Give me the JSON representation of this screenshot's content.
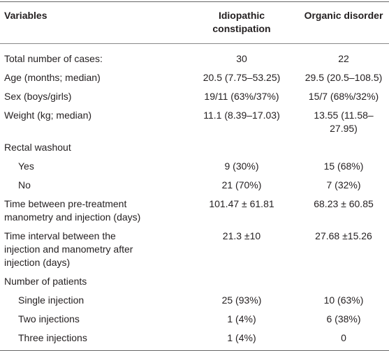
{
  "table": {
    "header": [
      "Variables",
      "Idiopathic\nconstipation",
      "Organic disorder"
    ],
    "rows": [
      [
        "Total number of cases:",
        "30",
        "22"
      ],
      [
        "Age (months; median)",
        "20.5 (7.75–53.25)",
        "29.5 (20.5–108.5)"
      ],
      [
        "Sex (boys/girls)",
        "19/11 (63%/37%)",
        "15/7 (68%/32%)"
      ],
      [
        "Weight (kg; median)",
        "11.1 (8.39–17.03)",
        "13.55 (11.58–27.95)"
      ],
      {
        "label": "Rectal washout",
        "rows": [
          [
            "Yes",
            "9 (30%)",
            "15 (68%)"
          ],
          [
            "No",
            "21 (70%)",
            "7 (32%)"
          ]
        ]
      },
      [
        "Time between pre-treatment\nmanometry and injection (days)",
        "101.47 ± 61.81",
        "68.23 ± 60.85"
      ],
      [
        "Time interval between the\ninjection and manometry after\ninjection (days)",
        "21.3 ±10",
        "27.68 ±15.26"
      ],
      {
        "label": "Number of patients",
        "rows": [
          [
            "Single injection",
            "25 (93%)",
            "10 (63%)"
          ],
          [
            "Two injections",
            "1 (4%)",
            "6 (38%)"
          ],
          [
            "Three injections",
            "1 (4%)",
            "0"
          ]
        ]
      }
    ]
  }
}
